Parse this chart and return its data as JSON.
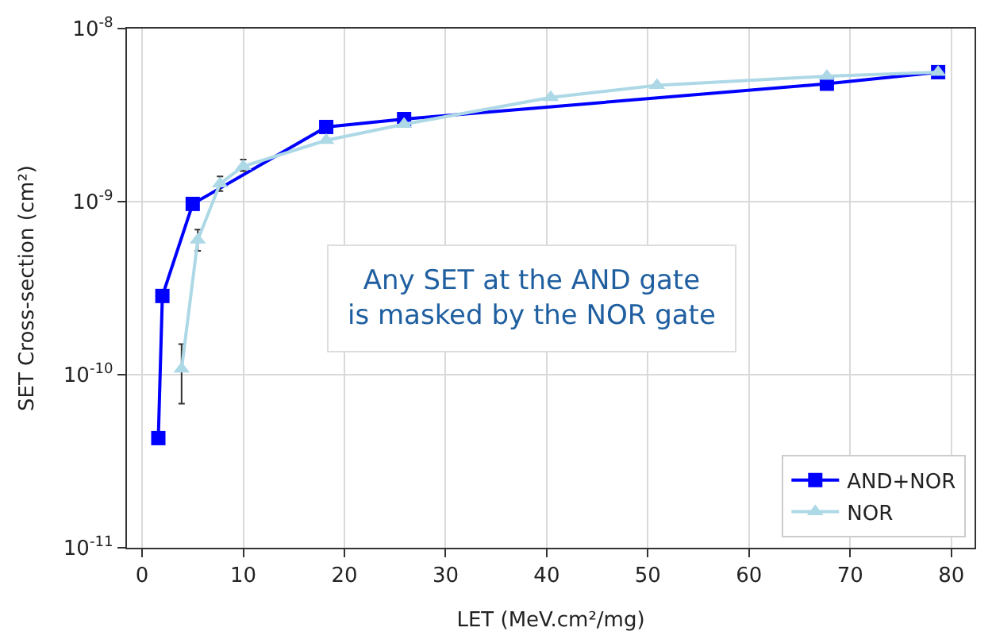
{
  "chart_data": {
    "type": "line",
    "xlabel": "LET (MeV.cm²/mg)",
    "ylabel": "SET Cross-section (cm²)",
    "xlim": [
      -1.5,
      82.3
    ],
    "xticks": [
      0,
      10,
      20,
      30,
      40,
      50,
      60,
      70,
      80
    ],
    "ylim": [
      1e-11,
      1e-08
    ],
    "yticks": [
      {
        "value": 1e-11,
        "label": "10$^{-11}$"
      },
      {
        "value": 1e-10,
        "label": "10$^{-10}$"
      },
      {
        "value": 1e-09,
        "label": "10$^{-9}$"
      },
      {
        "value": 1e-08,
        "label": "10$^{-8}$"
      }
    ],
    "log": "y",
    "grid": true,
    "legend": "bottom right",
    "line_style": "solid",
    "series": [
      {
        "name": "AND+NOR",
        "color": "#0000ff",
        "marker": "square",
        "x": [
          1.6,
          2.0,
          5.0,
          18.2,
          25.9,
          67.7,
          78.7
        ],
        "values": [
          4.3e-11,
          2.85e-10,
          9.7e-10,
          2.7e-09,
          3e-09,
          4.8e-09,
          5.6e-09
        ]
      },
      {
        "name": "NOR",
        "color": "#add8e6",
        "marker": "triangle",
        "x": [
          3.9,
          5.5,
          7.7,
          10.0,
          18.2,
          25.9,
          40.4,
          50.9,
          67.7,
          78.7
        ],
        "values": [
          1.08e-10,
          6e-10,
          1.27e-09,
          1.6e-09,
          2.26e-09,
          2.8e-09,
          4e-09,
          4.7e-09,
          5.3e-09,
          5.6e-09
        ],
        "errors": [
          [
            6.8e-11,
            1.5e-10
          ],
          [
            5.2e-10,
            6.9e-10
          ],
          [
            1.15e-09,
            1.4e-09
          ],
          [
            1.5e-09,
            1.75e-09
          ],
          null,
          null,
          null,
          null,
          null,
          null
        ]
      }
    ],
    "annotations": [
      "Any SET at the AND gate\nis masked by the NOR gate"
    ]
  }
}
